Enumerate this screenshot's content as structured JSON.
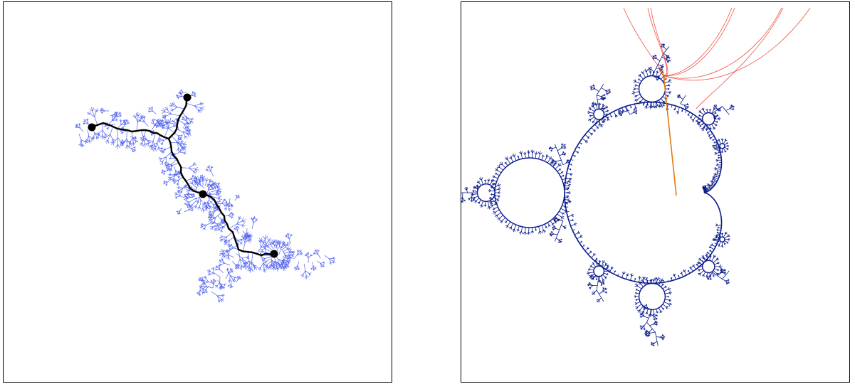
{
  "panels": [
    {
      "id": "julia-tree",
      "description_kind": "julia-set dendrite with black hubbard tree",
      "colors": {
        "julia": "#4a5cf0",
        "tree": "#000000",
        "points": "#000000"
      },
      "marked_points": 4
    },
    {
      "id": "mandelbrot",
      "description_kind": "mandelbrot set boundary with parameter rays",
      "colors": {
        "boundary": "#0a1a8c",
        "rays": "#ee3322",
        "landing_ray": "#e07a10"
      },
      "ray_count": 8
    }
  ]
}
